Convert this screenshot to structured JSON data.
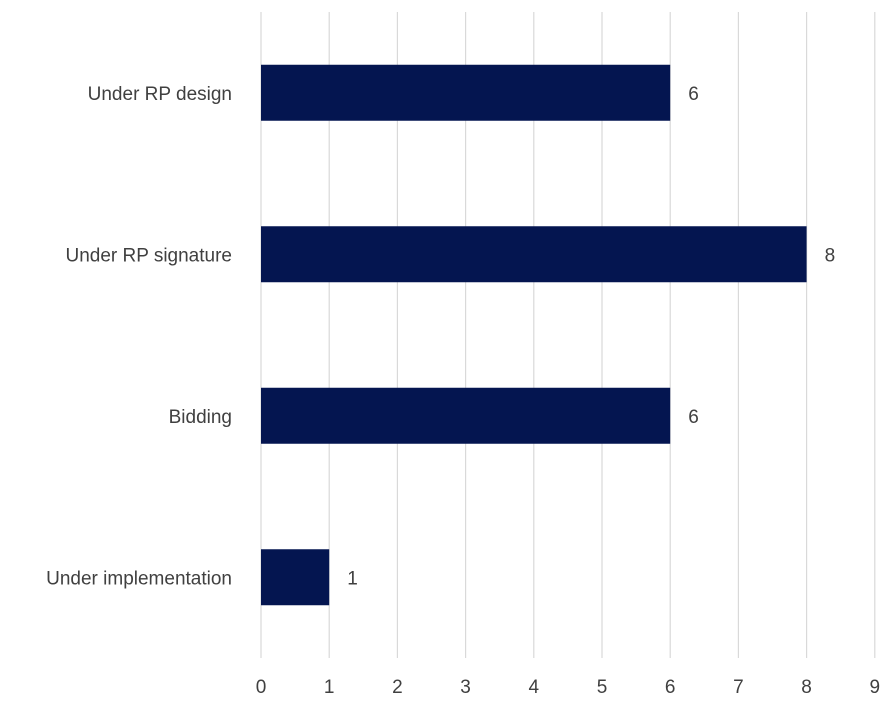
{
  "chart_data": {
    "type": "bar",
    "orientation": "horizontal",
    "categories": [
      "Under RP design",
      "Under RP signature",
      "Bidding",
      "Under implementation"
    ],
    "values": [
      6,
      8,
      6,
      1
    ],
    "data_labels": [
      "6",
      "8",
      "6",
      "1"
    ],
    "xlim": [
      0,
      9
    ],
    "x_ticks": [
      "0",
      "1",
      "2",
      "3",
      "4",
      "5",
      "6",
      "7",
      "8",
      "9"
    ],
    "grid": "vertical",
    "legend": "none",
    "bar_color": "#041550",
    "grid_color": "#d9d9d9",
    "text_color": "#404040"
  }
}
